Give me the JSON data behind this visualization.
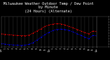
{
  "title_line1": "Milwaukee Weather Outdoor Temp / Dew Point",
  "title_line2": "by Minute",
  "title_line3": "(24 Hours) (Alternate)",
  "title_fontsize": 3.8,
  "bg_color": "#000000",
  "plot_bg_color": "#000000",
  "grid_color": "#404040",
  "text_color": "#ffffff",
  "temp_color": "#ff0000",
  "dew_color": "#0000ff",
  "ylim": [
    -20,
    90
  ],
  "xlim": [
    0,
    1440
  ],
  "x_ticks": [
    0,
    60,
    120,
    180,
    240,
    300,
    360,
    420,
    480,
    540,
    600,
    660,
    720,
    780,
    840,
    900,
    960,
    1020,
    1080,
    1140,
    1200,
    1260,
    1320,
    1380,
    1440
  ],
  "x_labels": [
    "12a",
    "1",
    "2",
    "3",
    "4",
    "5",
    "6",
    "7",
    "8",
    "9",
    "10",
    "11",
    "12p",
    "1",
    "2",
    "3",
    "4",
    "5",
    "6",
    "7",
    "8",
    "9",
    "10",
    "11",
    "12a"
  ],
  "y_ticks_right": [
    -20,
    -10,
    0,
    10,
    20,
    30,
    40,
    50,
    60,
    70,
    80,
    90
  ],
  "temp_x": [
    0,
    60,
    120,
    180,
    240,
    300,
    360,
    420,
    480,
    540,
    600,
    660,
    720,
    780,
    840,
    900,
    960,
    1020,
    1080,
    1140,
    1200,
    1260,
    1320,
    1380,
    1440
  ],
  "temp_y": [
    28,
    26,
    24,
    23,
    22,
    21,
    21,
    23,
    30,
    38,
    46,
    55,
    60,
    63,
    65,
    64,
    60,
    55,
    50,
    44,
    38,
    32,
    28,
    38,
    36
  ],
  "dew_x": [
    0,
    60,
    120,
    180,
    240,
    300,
    360,
    420,
    480,
    540,
    600,
    660,
    720,
    780,
    840,
    900,
    960,
    1020,
    1080,
    1140,
    1200,
    1260,
    1320,
    1380,
    1440
  ],
  "dew_y": [
    -8,
    -10,
    -12,
    -13,
    -14,
    -15,
    -14,
    -11,
    -5,
    5,
    15,
    25,
    33,
    40,
    44,
    45,
    44,
    40,
    35,
    28,
    22,
    16,
    10,
    22,
    20
  ],
  "marker_size": 1.0,
  "line_width": 0.5
}
